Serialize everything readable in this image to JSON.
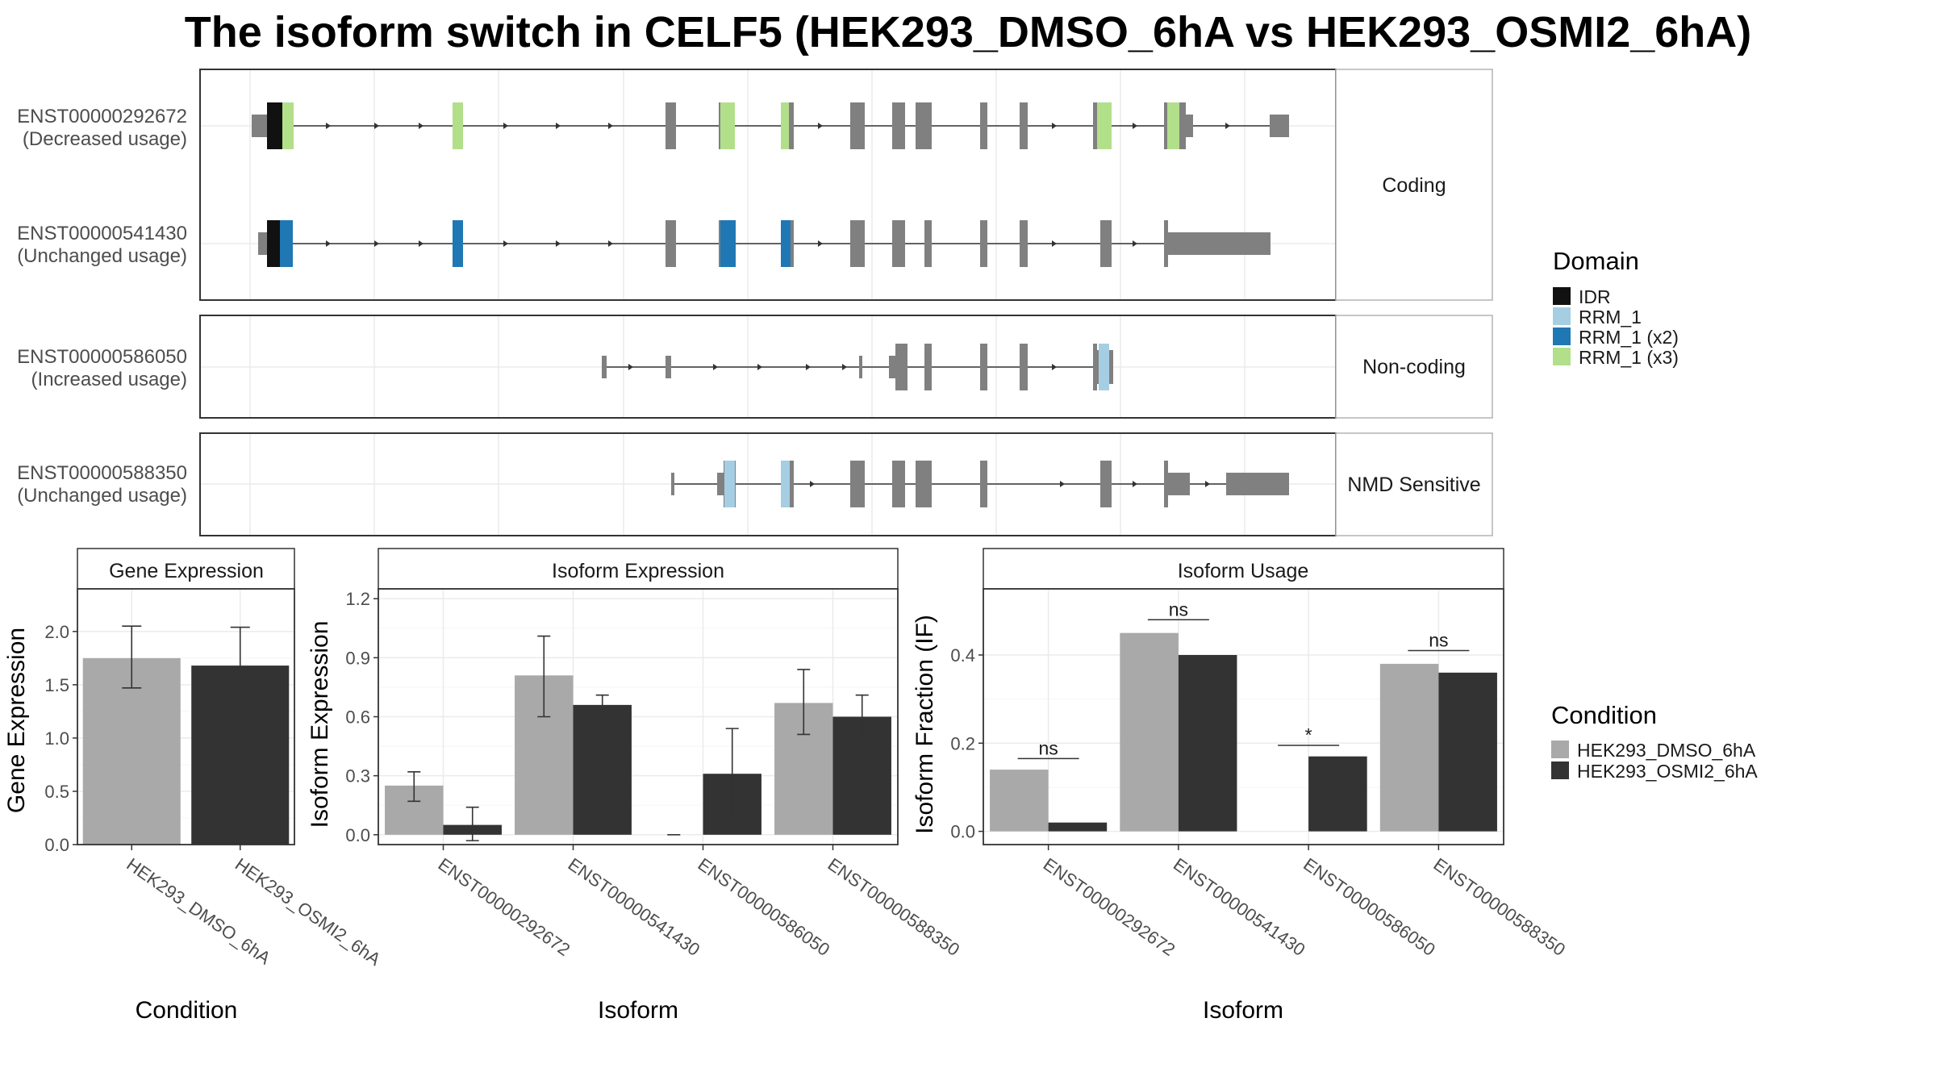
{
  "title": "The isoform switch in CELF5 (HEK293_DMSO_6hA vs HEK293_OSMI2_6hA)",
  "colors": {
    "exon": "#808080",
    "IDR": "#111111",
    "RRM_1": "#a6cee3",
    "RRM_1 (x2)": "#1f78b4",
    "RRM_1 (x3)": "#b2df8a",
    "dmso": "#a9a9a9",
    "osmi": "#333333"
  },
  "structure": {
    "transcripts": [
      {
        "id": "ENST00000292672",
        "usage": "(Decreased usage)",
        "category": "Coding"
      },
      {
        "id": "ENST00000541430",
        "usage": "(Unchanged usage)",
        "category": "Coding"
      },
      {
        "id": "ENST00000586050",
        "usage": "(Increased usage)",
        "category": "Non-coding"
      },
      {
        "id": "ENST00000588350",
        "usage": "(Unchanged usage)",
        "category": "NMD Sensitive"
      }
    ],
    "categories": [
      "Coding",
      "Non-coding",
      "NMD Sensitive"
    ]
  },
  "legend_domain": {
    "title": "Domain",
    "items": [
      {
        "label": "IDR",
        "color": "#111111"
      },
      {
        "label": "RRM_1",
        "color": "#a6cee3"
      },
      {
        "label": "RRM_1 (x2)",
        "color": "#1f78b4"
      },
      {
        "label": "RRM_1 (x3)",
        "color": "#b2df8a"
      }
    ]
  },
  "legend_condition": {
    "title": "Condition",
    "items": [
      {
        "label": "HEK293_DMSO_6hA",
        "color": "#a9a9a9"
      },
      {
        "label": "HEK293_OSMI2_6hA",
        "color": "#333333"
      }
    ]
  },
  "chart_data": [
    {
      "type": "bar",
      "title": "Gene Expression",
      "xlabel": "Condition",
      "ylabel": "Gene Expression",
      "ylim": [
        0,
        2.4
      ],
      "yticks": [
        "0.0",
        "0.5",
        "1.0",
        "1.5",
        "2.0"
      ],
      "categories": [
        "HEK293_DMSO_6hA",
        "HEK293_OSMI2_6hA"
      ],
      "values": [
        1.75,
        1.68
      ],
      "err_low": [
        1.47,
        1.33
      ],
      "err_high": [
        2.05,
        2.04
      ]
    },
    {
      "type": "bar",
      "title": "Isoform Expression",
      "xlabel": "Isoform",
      "ylabel": "Isoform Expression",
      "ylim": [
        -0.05,
        1.25
      ],
      "yticks": [
        "0.0",
        "0.3",
        "0.6",
        "0.9",
        "1.2"
      ],
      "categories": [
        "ENST00000292672",
        "ENST00000541430",
        "ENST00000586050",
        "ENST00000588350"
      ],
      "series": [
        {
          "name": "HEK293_DMSO_6hA",
          "values": [
            0.25,
            0.81,
            0.0,
            0.67
          ],
          "err_low": [
            0.17,
            0.6,
            0.0,
            0.51
          ],
          "err_high": [
            0.32,
            1.01,
            0.0,
            0.84
          ]
        },
        {
          "name": "HEK293_OSMI2_6hA",
          "values": [
            0.05,
            0.66,
            0.31,
            0.6
          ],
          "err_low": [
            -0.03,
            0.61,
            0.07,
            0.49
          ],
          "err_high": [
            0.14,
            0.71,
            0.54,
            0.71
          ]
        }
      ]
    },
    {
      "type": "bar",
      "title": "Isoform Usage",
      "xlabel": "Isoform",
      "ylabel": "Isoform Fraction (IF)",
      "ylim": [
        -0.03,
        0.55
      ],
      "yticks": [
        "0.0",
        "0.2",
        "0.4"
      ],
      "categories": [
        "ENST00000292672",
        "ENST00000541430",
        "ENST00000586050",
        "ENST00000588350"
      ],
      "series": [
        {
          "name": "HEK293_DMSO_6hA",
          "values": [
            0.14,
            0.45,
            0.0,
            0.38
          ]
        },
        {
          "name": "HEK293_OSMI2_6hA",
          "values": [
            0.02,
            0.4,
            0.17,
            0.36
          ]
        }
      ],
      "annotations": [
        "ns",
        "ns",
        "*",
        "ns"
      ],
      "annotation_levels": [
        0.165,
        0.48,
        0.195,
        0.41
      ]
    }
  ]
}
